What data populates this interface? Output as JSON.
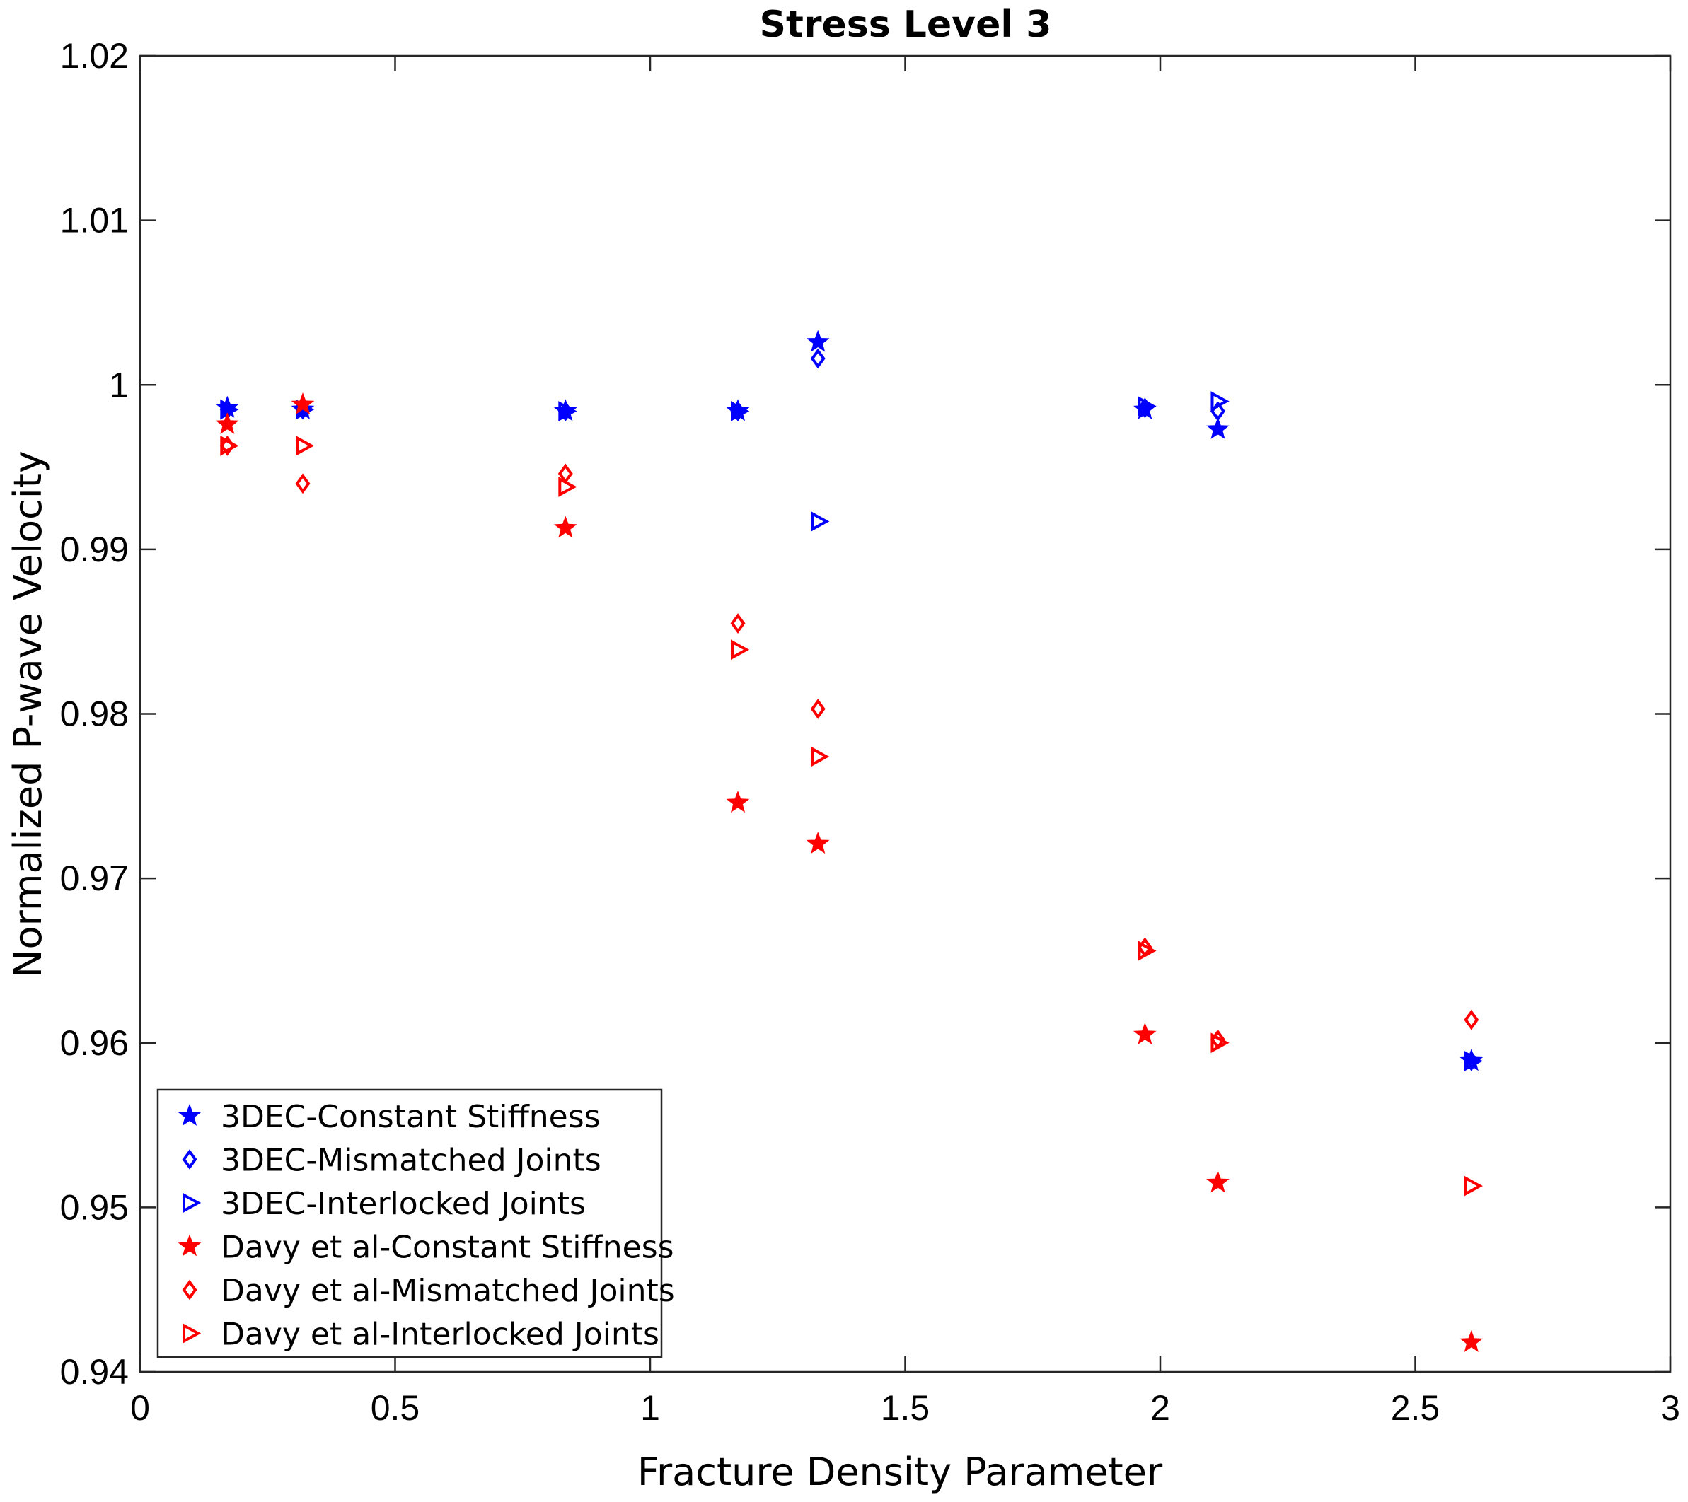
{
  "chart_data": {
    "type": "scatter",
    "title": "Stress Level 3",
    "xlabel": "Fracture Density Parameter",
    "ylabel": "Normalized P-wave Velocity",
    "xlim": [
      0,
      3
    ],
    "ylim": [
      0.94,
      1.02
    ],
    "xticks": [
      0,
      0.5,
      1,
      1.5,
      2,
      2.5,
      3
    ],
    "xtick_labels": [
      "0",
      "0.5",
      "1",
      "1.5",
      "2",
      "2.5",
      "3"
    ],
    "yticks": [
      0.94,
      0.95,
      0.96,
      0.97,
      0.98,
      0.99,
      1.0,
      1.01,
      1.02
    ],
    "ytick_labels": [
      "0.94",
      "0.95",
      "0.96",
      "0.97",
      "0.98",
      "0.99",
      "1",
      "1.01",
      "1.02"
    ],
    "grid": false,
    "legend_position": "bottom-left",
    "x": [
      0.171,
      0.319,
      0.834,
      1.172,
      1.329,
      1.97,
      2.113,
      2.61
    ],
    "series": [
      {
        "name": "3DEC-Constant Stiffness",
        "color": "#0000ff",
        "marker": "star",
        "values": [
          0.9986,
          0.9985,
          0.9984,
          0.9984,
          1.0026,
          0.9985,
          0.9973,
          0.9589
        ]
      },
      {
        "name": "3DEC-Mismatched Joints",
        "color": "#0000ff",
        "marker": "diamond",
        "values": [
          0.9985,
          0.9985,
          0.9984,
          0.9984,
          1.0016,
          0.9986,
          0.9984,
          0.9589
        ]
      },
      {
        "name": "3DEC-Interlocked Joints",
        "color": "#0000ff",
        "marker": "triangle-right",
        "values": [
          0.9985,
          0.9985,
          0.9984,
          0.9984,
          0.9917,
          0.9987,
          0.999,
          0.9589
        ]
      },
      {
        "name": "Davy et al-Constant Stiffness",
        "color": "#ff0000",
        "marker": "star",
        "values": [
          0.9976,
          0.9988,
          0.9913,
          0.9746,
          0.9721,
          0.9605,
          0.9515,
          0.9418
        ]
      },
      {
        "name": "Davy et al-Mismatched Joints",
        "color": "#ff0000",
        "marker": "diamond",
        "values": [
          0.9963,
          0.994,
          0.9946,
          0.9855,
          0.9803,
          0.9658,
          0.9602,
          0.9614
        ]
      },
      {
        "name": "Davy et al-Interlocked Joints",
        "color": "#ff0000",
        "marker": "triangle-right",
        "values": [
          0.9963,
          0.9963,
          0.9938,
          0.9839,
          0.9774,
          0.9656,
          0.96,
          0.9513
        ]
      }
    ]
  }
}
